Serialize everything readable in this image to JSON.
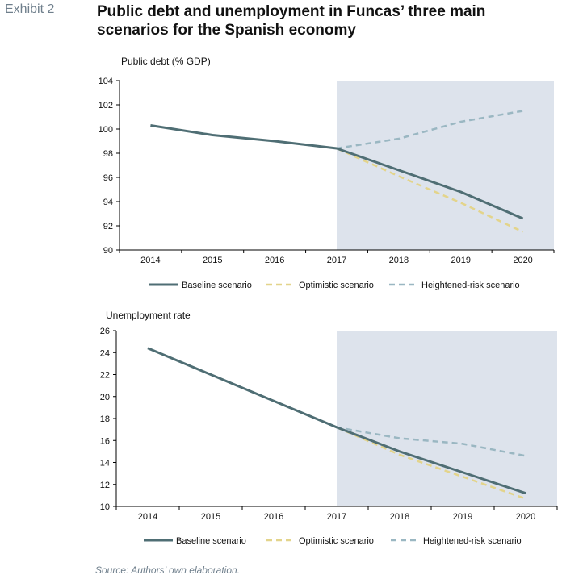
{
  "header": {
    "exhibit": "Exhibit 2",
    "title": "Public debt and unemployment in Funcas’ three main scenarios  for the Spanish economy"
  },
  "source": "Source: Authors’ own elaboration.",
  "colors": {
    "baseline": "#4f6e74",
    "optimistic": "#e3d48b",
    "heightened": "#9ab7c2",
    "shade": "#dde3ec"
  },
  "chart_data": [
    {
      "type": "line",
      "title": "Public debt (% GDP)",
      "x": [
        "2014",
        "2015",
        "2016",
        "2017",
        "2018",
        "2019",
        "2020"
      ],
      "ylim": [
        90,
        104
      ],
      "yticks": [
        90,
        92,
        94,
        96,
        98,
        100,
        102,
        104
      ],
      "shaded_from": "2017",
      "series": [
        {
          "name": "Baseline scenario",
          "style": "solid",
          "values": [
            100.3,
            99.5,
            99.0,
            98.4,
            96.6,
            94.8,
            92.6
          ]
        },
        {
          "name": "Optimistic scenario",
          "style": "dashed",
          "values": [
            null,
            null,
            null,
            98.4,
            96.1,
            93.9,
            91.5
          ]
        },
        {
          "name": "Heightened-risk scenario",
          "style": "dashed",
          "values": [
            null,
            null,
            null,
            98.4,
            99.2,
            100.6,
            101.5
          ]
        }
      ],
      "grid": false,
      "legend": "bottom"
    },
    {
      "type": "line",
      "title": "Unemployment rate",
      "x": [
        "2014",
        "2015",
        "2016",
        "2017",
        "2018",
        "2019",
        "2020"
      ],
      "ylim": [
        10,
        26
      ],
      "yticks": [
        10,
        12,
        14,
        16,
        18,
        20,
        22,
        24,
        26
      ],
      "shaded_from": "2017",
      "series": [
        {
          "name": "Baseline scenario",
          "style": "solid",
          "values": [
            24.4,
            22.0,
            19.6,
            17.2,
            15.0,
            13.1,
            11.2
          ]
        },
        {
          "name": "Optimistic scenario",
          "style": "dashed",
          "values": [
            null,
            null,
            null,
            17.2,
            14.7,
            12.7,
            10.7
          ]
        },
        {
          "name": "Heightened-risk scenario",
          "style": "dashed",
          "values": [
            null,
            null,
            null,
            17.2,
            16.2,
            15.7,
            14.6
          ]
        }
      ],
      "grid": false,
      "legend": "bottom"
    }
  ]
}
